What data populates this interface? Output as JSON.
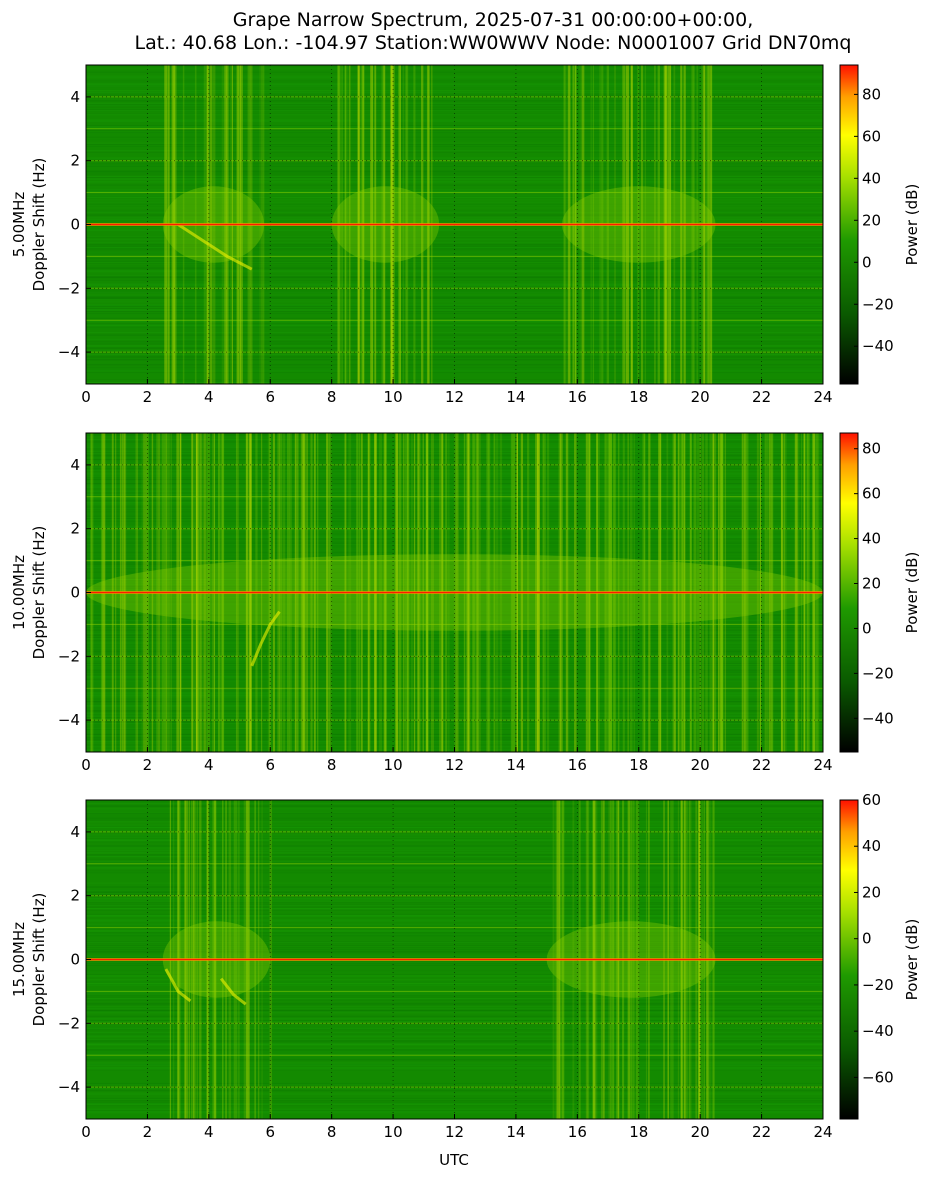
{
  "title": {
    "line1": "Grape Narrow Spectrum, 2025-07-31 00:00:00+00:00,",
    "line2": "Lat.: 40.68 Lon.: -104.97 Station:WW0WWV Node: N0001007 Grid DN70mq"
  },
  "colors": {
    "background_green": "#138a00",
    "mid_green": "#0f7a00",
    "yellow_green": "#8fd000",
    "yellow": "#f2f200",
    "orange": "#ff9900",
    "red": "#ff1a00",
    "black": "#000000"
  },
  "chart_data": [
    {
      "type": "heatmap",
      "panel_label": "5.00MHz",
      "ylabel": "Doppler Shift (Hz)",
      "xlabel": "",
      "xlim": [
        0,
        24
      ],
      "ylim": [
        -5,
        5
      ],
      "x_ticks": [
        "0",
        "2",
        "4",
        "6",
        "8",
        "10",
        "12",
        "14",
        "16",
        "18",
        "20",
        "22",
        "24"
      ],
      "y_ticks": [
        "−4",
        "−2",
        "0",
        "2",
        "4"
      ],
      "colorbar": {
        "label": "Power (dB)",
        "range": [
          -58,
          94
        ],
        "ticks": [
          "80",
          "60",
          "40",
          "20",
          "0",
          "−20",
          "−40"
        ],
        "tick_values": [
          80,
          60,
          40,
          20,
          0,
          -20,
          -40
        ]
      },
      "carrier_hz": 0,
      "harmonic_lines_hz": [
        4,
        3,
        2,
        1,
        -1,
        -2,
        -3,
        -4
      ],
      "activity_bursts_utc": [
        [
          2.5,
          5.8
        ],
        [
          8.0,
          11.5
        ],
        [
          15.5,
          20.5
        ]
      ],
      "doppler_traces": [
        {
          "x": [
            3.0,
            3.8,
            4.6,
            5.4
          ],
          "y": [
            0.0,
            -0.5,
            -1.0,
            -1.4
          ]
        }
      ]
    },
    {
      "type": "heatmap",
      "panel_label": "10.00MHz",
      "ylabel": "Doppler Shift (Hz)",
      "xlabel": "",
      "xlim": [
        0,
        24
      ],
      "ylim": [
        -5,
        5
      ],
      "x_ticks": [
        "0",
        "2",
        "4",
        "6",
        "8",
        "10",
        "12",
        "14",
        "16",
        "18",
        "20",
        "22",
        "24"
      ],
      "y_ticks": [
        "−4",
        "−2",
        "0",
        "2",
        "4"
      ],
      "colorbar": {
        "label": "Power (dB)",
        "range": [
          -55,
          87
        ],
        "ticks": [
          "80",
          "60",
          "40",
          "20",
          "0",
          "−20",
          "−40"
        ],
        "tick_values": [
          80,
          60,
          40,
          20,
          0,
          -20,
          -40
        ]
      },
      "carrier_hz": 0,
      "harmonic_lines_hz": [
        4,
        3,
        2,
        1,
        -1,
        -2,
        -3,
        -4
      ],
      "activity_bursts_utc": [
        [
          0.0,
          24.0
        ]
      ],
      "doppler_traces": [
        {
          "x": [
            5.4,
            5.7,
            6.0,
            6.3
          ],
          "y": [
            -2.3,
            -1.6,
            -1.0,
            -0.6
          ]
        }
      ]
    },
    {
      "type": "heatmap",
      "panel_label": "15.00MHz",
      "ylabel": "Doppler Shift (Hz)",
      "xlabel": "UTC",
      "xlim": [
        0,
        24
      ],
      "ylim": [
        -5,
        5
      ],
      "x_ticks": [
        "0",
        "2",
        "4",
        "6",
        "8",
        "10",
        "12",
        "14",
        "16",
        "18",
        "20",
        "22",
        "24"
      ],
      "y_ticks": [
        "−4",
        "−2",
        "0",
        "2",
        "4"
      ],
      "colorbar": {
        "label": "Power (dB)",
        "range": [
          -78,
          60
        ],
        "ticks": [
          "60",
          "40",
          "20",
          "0",
          "−20",
          "−40",
          "−60"
        ],
        "tick_values": [
          60,
          40,
          20,
          0,
          -20,
          -40,
          -60
        ]
      },
      "carrier_hz": 0,
      "harmonic_lines_hz": [
        4,
        3,
        2,
        1,
        -1,
        -2,
        -3,
        -4
      ],
      "activity_bursts_utc": [
        [
          2.5,
          6.0
        ],
        [
          15.0,
          20.5
        ]
      ],
      "doppler_traces": [
        {
          "x": [
            2.6,
            3.0,
            3.4
          ],
          "y": [
            -0.3,
            -1.0,
            -1.3
          ]
        },
        {
          "x": [
            4.4,
            4.8,
            5.2
          ],
          "y": [
            -0.6,
            -1.1,
            -1.4
          ]
        }
      ]
    }
  ]
}
